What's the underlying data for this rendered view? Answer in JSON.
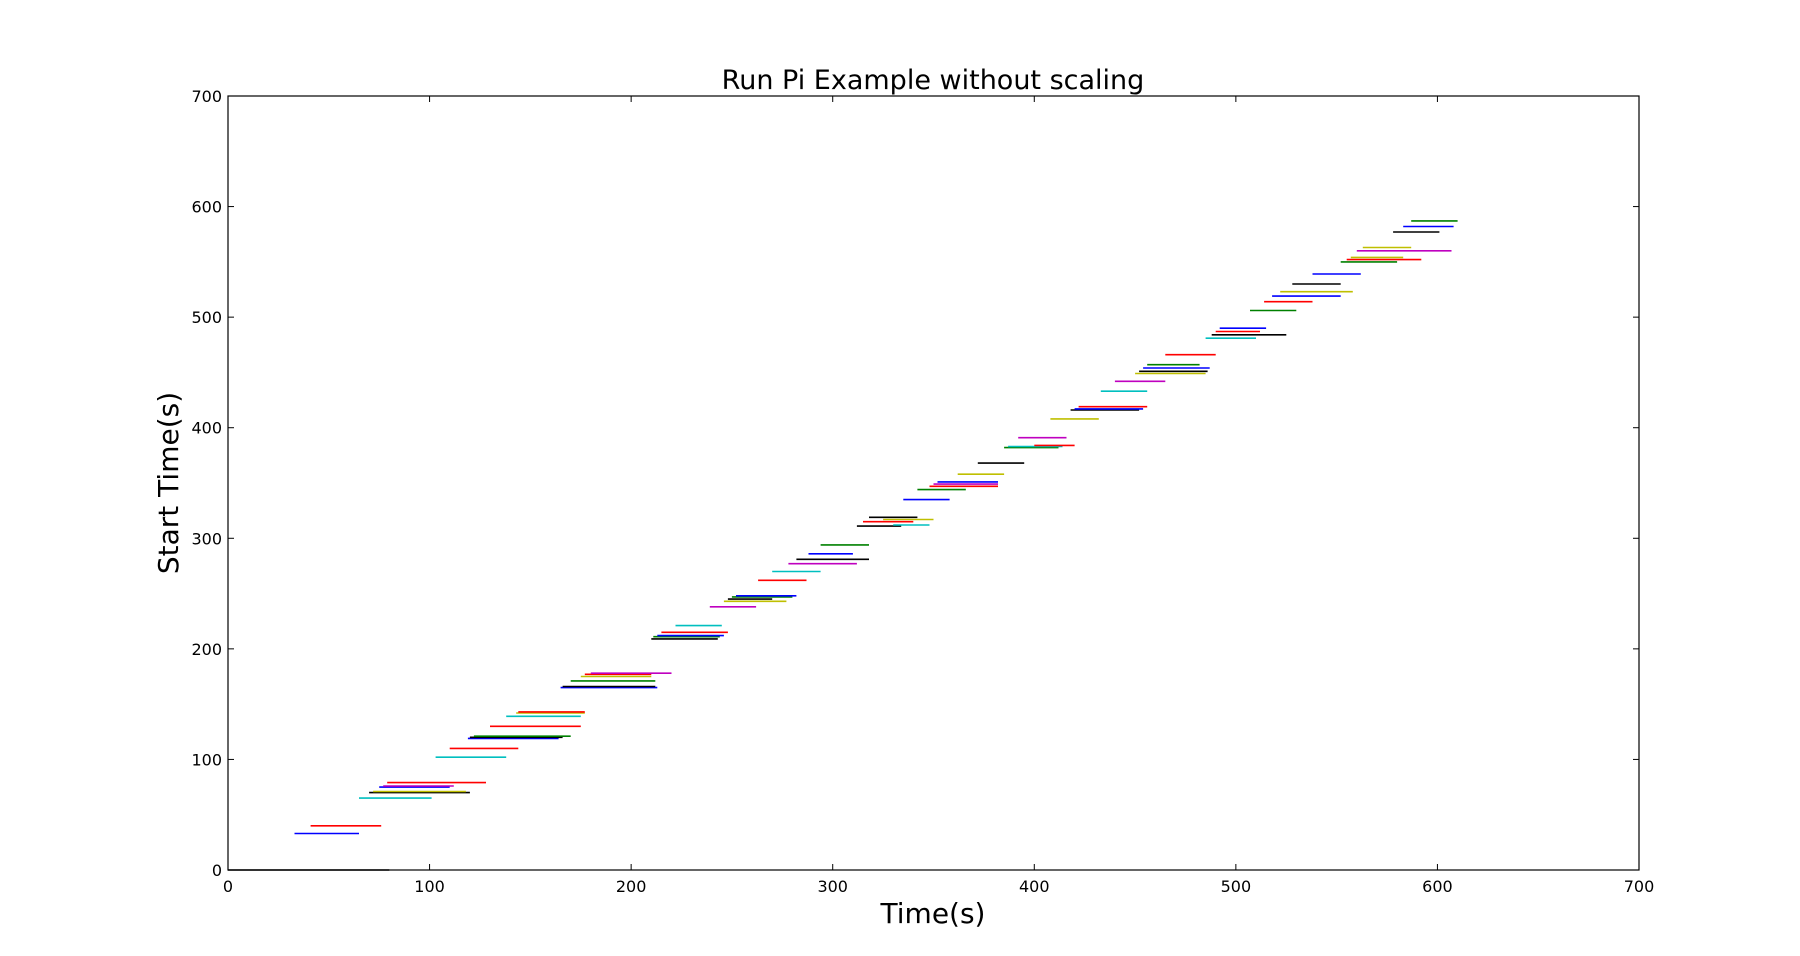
{
  "chart_data": {
    "type": "line",
    "title": "Run Pi Example without scaling",
    "xlabel": "Time(s)",
    "ylabel": "Start Time(s)",
    "xlim": [
      0,
      700
    ],
    "ylim": [
      0,
      700
    ],
    "xticks": [
      "0",
      "100",
      "200",
      "300",
      "400",
      "500",
      "600",
      "700"
    ],
    "yticks": [
      "0",
      "100",
      "200",
      "300",
      "400",
      "500",
      "600",
      "700"
    ],
    "grid": false,
    "legend": "none",
    "colors": {
      "b": "#0000ff",
      "r": "#ff0000",
      "g": "#008000",
      "c": "#00bfbf",
      "m": "#bf00bf",
      "y": "#bfbf00",
      "k": "#000000"
    },
    "series": [
      {
        "color": "k",
        "x": [
          0,
          80
        ],
        "y": [
          0,
          0
        ]
      },
      {
        "color": "b",
        "x": [
          33,
          65
        ],
        "y": [
          33,
          33
        ]
      },
      {
        "color": "r",
        "x": [
          41,
          76
        ],
        "y": [
          40,
          40
        ]
      },
      {
        "color": "c",
        "x": [
          65,
          101
        ],
        "y": [
          65,
          65
        ]
      },
      {
        "color": "k",
        "x": [
          70,
          120
        ],
        "y": [
          70,
          70
        ]
      },
      {
        "color": "y",
        "x": [
          72,
          118
        ],
        "y": [
          71,
          71
        ]
      },
      {
        "color": "b",
        "x": [
          75,
          110
        ],
        "y": [
          75,
          75
        ]
      },
      {
        "color": "m",
        "x": [
          77,
          112
        ],
        "y": [
          76,
          76
        ]
      },
      {
        "color": "r",
        "x": [
          79,
          128
        ],
        "y": [
          79,
          79
        ]
      },
      {
        "color": "c",
        "x": [
          103,
          138
        ],
        "y": [
          102,
          102
        ]
      },
      {
        "color": "r",
        "x": [
          110,
          144
        ],
        "y": [
          110,
          110
        ]
      },
      {
        "color": "b",
        "x": [
          119,
          164
        ],
        "y": [
          119,
          119
        ]
      },
      {
        "color": "k",
        "x": [
          120,
          166
        ],
        "y": [
          120,
          120
        ]
      },
      {
        "color": "g",
        "x": [
          122,
          170
        ],
        "y": [
          121,
          121
        ]
      },
      {
        "color": "r",
        "x": [
          130,
          175
        ],
        "y": [
          130,
          130
        ]
      },
      {
        "color": "c",
        "x": [
          138,
          175
        ],
        "y": [
          139,
          139
        ]
      },
      {
        "color": "y",
        "x": [
          143,
          177
        ],
        "y": [
          142,
          142
        ]
      },
      {
        "color": "r",
        "x": [
          144,
          177
        ],
        "y": [
          143,
          143
        ]
      },
      {
        "color": "b",
        "x": [
          165,
          213
        ],
        "y": [
          165,
          165
        ]
      },
      {
        "color": "k",
        "x": [
          166,
          212
        ],
        "y": [
          166,
          166
        ]
      },
      {
        "color": "g",
        "x": [
          170,
          212
        ],
        "y": [
          171,
          171
        ]
      },
      {
        "color": "y",
        "x": [
          175,
          210
        ],
        "y": [
          175,
          175
        ]
      },
      {
        "color": "r",
        "x": [
          177,
          210
        ],
        "y": [
          177,
          177
        ]
      },
      {
        "color": "m",
        "x": [
          180,
          220
        ],
        "y": [
          178,
          178
        ]
      },
      {
        "color": "k",
        "x": [
          210,
          243
        ],
        "y": [
          209,
          209
        ]
      },
      {
        "color": "g",
        "x": [
          211,
          244
        ],
        "y": [
          211,
          211
        ]
      },
      {
        "color": "b",
        "x": [
          213,
          246
        ],
        "y": [
          212,
          212
        ]
      },
      {
        "color": "r",
        "x": [
          215,
          248
        ],
        "y": [
          215,
          215
        ]
      },
      {
        "color": "c",
        "x": [
          222,
          245
        ],
        "y": [
          221,
          221
        ]
      },
      {
        "color": "m",
        "x": [
          239,
          262
        ],
        "y": [
          238,
          238
        ]
      },
      {
        "color": "y",
        "x": [
          246,
          277
        ],
        "y": [
          243,
          243
        ]
      },
      {
        "color": "k",
        "x": [
          248,
          270
        ],
        "y": [
          245,
          245
        ]
      },
      {
        "color": "g",
        "x": [
          250,
          280
        ],
        "y": [
          247,
          247
        ]
      },
      {
        "color": "b",
        "x": [
          252,
          282
        ],
        "y": [
          248,
          248
        ]
      },
      {
        "color": "r",
        "x": [
          263,
          287
        ],
        "y": [
          262,
          262
        ]
      },
      {
        "color": "c",
        "x": [
          270,
          294
        ],
        "y": [
          270,
          270
        ]
      },
      {
        "color": "m",
        "x": [
          278,
          312
        ],
        "y": [
          277,
          277
        ]
      },
      {
        "color": "k",
        "x": [
          282,
          318
        ],
        "y": [
          281,
          281
        ]
      },
      {
        "color": "b",
        "x": [
          288,
          310
        ],
        "y": [
          286,
          286
        ]
      },
      {
        "color": "g",
        "x": [
          294,
          318
        ],
        "y": [
          294,
          294
        ]
      },
      {
        "color": "k",
        "x": [
          312,
          334
        ],
        "y": [
          311,
          311
        ]
      },
      {
        "color": "c",
        "x": [
          330,
          348
        ],
        "y": [
          312,
          312
        ]
      },
      {
        "color": "r",
        "x": [
          315,
          340
        ],
        "y": [
          315,
          315
        ]
      },
      {
        "color": "y",
        "x": [
          325,
          350
        ],
        "y": [
          317,
          317
        ]
      },
      {
        "color": "k",
        "x": [
          318,
          342
        ],
        "y": [
          319,
          319
        ]
      },
      {
        "color": "b",
        "x": [
          335,
          358
        ],
        "y": [
          335,
          335
        ]
      },
      {
        "color": "g",
        "x": [
          342,
          366
        ],
        "y": [
          344,
          344
        ]
      },
      {
        "color": "r",
        "x": [
          348,
          382
        ],
        "y": [
          347,
          347
        ]
      },
      {
        "color": "m",
        "x": [
          350,
          382
        ],
        "y": [
          349,
          349
        ]
      },
      {
        "color": "b",
        "x": [
          352,
          382
        ],
        "y": [
          351,
          351
        ]
      },
      {
        "color": "y",
        "x": [
          362,
          385
        ],
        "y": [
          358,
          358
        ]
      },
      {
        "color": "k",
        "x": [
          372,
          395
        ],
        "y": [
          368,
          368
        ]
      },
      {
        "color": "g",
        "x": [
          385,
          412
        ],
        "y": [
          382,
          382
        ]
      },
      {
        "color": "c",
        "x": [
          387,
          414
        ],
        "y": [
          383,
          383
        ]
      },
      {
        "color": "r",
        "x": [
          400,
          420
        ],
        "y": [
          384,
          384
        ]
      },
      {
        "color": "m",
        "x": [
          392,
          416
        ],
        "y": [
          391,
          391
        ]
      },
      {
        "color": "y",
        "x": [
          408,
          432
        ],
        "y": [
          408,
          408
        ]
      },
      {
        "color": "k",
        "x": [
          418,
          452
        ],
        "y": [
          416,
          416
        ]
      },
      {
        "color": "b",
        "x": [
          420,
          454
        ],
        "y": [
          417,
          417
        ]
      },
      {
        "color": "r",
        "x": [
          422,
          456
        ],
        "y": [
          419,
          419
        ]
      },
      {
        "color": "c",
        "x": [
          433,
          456
        ],
        "y": [
          433,
          433
        ]
      },
      {
        "color": "m",
        "x": [
          440,
          465
        ],
        "y": [
          442,
          442
        ]
      },
      {
        "color": "y",
        "x": [
          450,
          485
        ],
        "y": [
          449,
          449
        ]
      },
      {
        "color": "k",
        "x": [
          452,
          486
        ],
        "y": [
          451,
          451
        ]
      },
      {
        "color": "b",
        "x": [
          454,
          487
        ],
        "y": [
          454,
          454
        ]
      },
      {
        "color": "g",
        "x": [
          456,
          482
        ],
        "y": [
          457,
          457
        ]
      },
      {
        "color": "r",
        "x": [
          465,
          490
        ],
        "y": [
          466,
          466
        ]
      },
      {
        "color": "c",
        "x": [
          485,
          510
        ],
        "y": [
          481,
          481
        ]
      },
      {
        "color": "k",
        "x": [
          488,
          525
        ],
        "y": [
          484,
          484
        ]
      },
      {
        "color": "r",
        "x": [
          490,
          512
        ],
        "y": [
          487,
          487
        ]
      },
      {
        "color": "b",
        "x": [
          492,
          515
        ],
        "y": [
          490,
          490
        ]
      },
      {
        "color": "g",
        "x": [
          507,
          530
        ],
        "y": [
          506,
          506
        ]
      },
      {
        "color": "r",
        "x": [
          514,
          538
        ],
        "y": [
          514,
          514
        ]
      },
      {
        "color": "b",
        "x": [
          518,
          552
        ],
        "y": [
          519,
          519
        ]
      },
      {
        "color": "y",
        "x": [
          522,
          558
        ],
        "y": [
          523,
          523
        ]
      },
      {
        "color": "k",
        "x": [
          528,
          552
        ],
        "y": [
          530,
          530
        ]
      },
      {
        "color": "b",
        "x": [
          538,
          562
        ],
        "y": [
          539,
          539
        ]
      },
      {
        "color": "g",
        "x": [
          552,
          580
        ],
        "y": [
          550,
          550
        ]
      },
      {
        "color": "r",
        "x": [
          555,
          592
        ],
        "y": [
          552,
          552
        ]
      },
      {
        "color": "y",
        "x": [
          557,
          583
        ],
        "y": [
          554,
          554
        ]
      },
      {
        "color": "m",
        "x": [
          560,
          607
        ],
        "y": [
          560,
          560
        ]
      },
      {
        "color": "y",
        "x": [
          563,
          587
        ],
        "y": [
          563,
          563
        ]
      },
      {
        "color": "k",
        "x": [
          578,
          601
        ],
        "y": [
          577,
          577
        ]
      },
      {
        "color": "b",
        "x": [
          583,
          608
        ],
        "y": [
          582,
          582
        ]
      },
      {
        "color": "g",
        "x": [
          587,
          610
        ],
        "y": [
          587,
          587
        ]
      }
    ]
  }
}
